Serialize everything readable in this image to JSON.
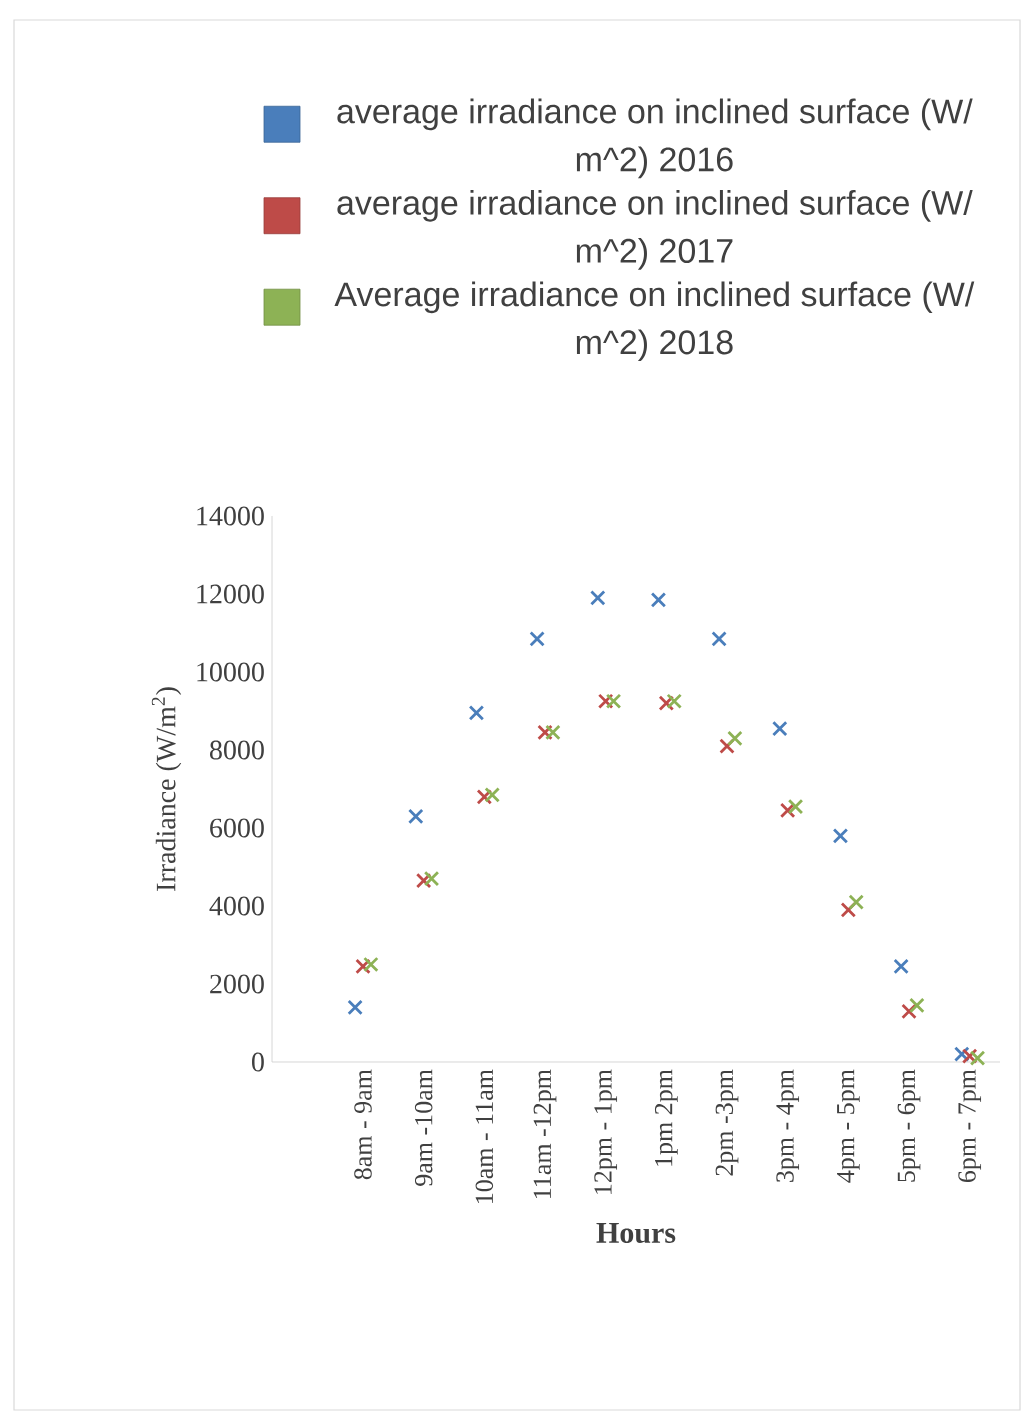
{
  "chart_data": {
    "type": "scatter",
    "categories": [
      "8am - 9am",
      "9am -10am",
      "10am - 11am",
      "11am -12pm",
      "12pm - 1pm",
      "1pm 2pm",
      "2pm -3pm",
      "3pm - 4pm",
      "4pm - 5pm",
      "5pm - 6pm",
      "6pm - 7pm"
    ],
    "series": [
      {
        "name": "average irradiance on inclined surface (W/ m^2) 2016",
        "color": "#4a7ebb",
        "values": [
          1400,
          6300,
          8950,
          10850,
          11900,
          11850,
          10850,
          8550,
          5800,
          2450,
          200
        ]
      },
      {
        "name": "average irradiance on inclined surface (W/ m^2) 2017",
        "color": "#be4b48",
        "values": [
          2450,
          4650,
          6800,
          8450,
          9250,
          9200,
          8100,
          6450,
          3900,
          1300,
          150
        ]
      },
      {
        "name": "Average irradiance on inclined surface (W/ m^2) 2018",
        "color": "#8db255",
        "values": [
          2500,
          4700,
          6850,
          8450,
          9250,
          9250,
          8300,
          6550,
          4100,
          1450,
          100
        ]
      }
    ],
    "xlabel": "Hours",
    "ylabel": "Irradiance (W/m$^{2}$)",
    "ylim": [
      0,
      14000
    ],
    "yticks": [
      0,
      2000,
      4000,
      6000,
      8000,
      10000,
      12000,
      14000
    ],
    "grid": false,
    "legend": "top",
    "marker": "cross"
  }
}
